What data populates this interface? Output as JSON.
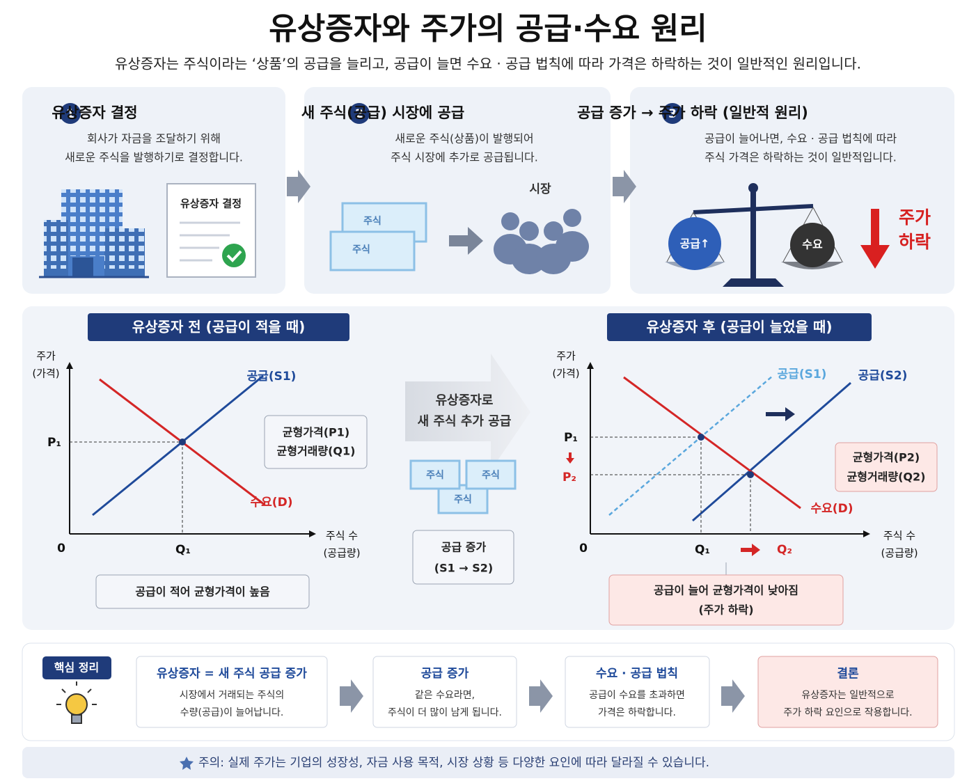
{
  "header": {
    "title": "유상증자와 주가의 공급·수요 원리",
    "subtitle": "유상증자는 주식이라는 ‘상품’의 공급을 늘리고, 공급이 늘면 수요 · 공급 법칙에 따라 가격은 하락하는 것이 일반적인 원리입니다."
  },
  "steps": [
    {
      "number": 1,
      "title": "유상증자 결정",
      "description": [
        "회사가 자금을 조달하기 위해",
        "새로운 주식을 발행하기로 결정합니다."
      ],
      "document_label": "유상증자 결정"
    },
    {
      "number": 2,
      "title": "새 주식(공급) 시장에 공급",
      "description": [
        "새로운 주식(상품)이 발행되어",
        "주식 시장에 추가로 공급됩니다."
      ],
      "certificate_labels": [
        "주식",
        "주식"
      ],
      "market_label": "시장"
    },
    {
      "number": 3,
      "title": "공급 증가 → 주가 하락 (일반적 원리)",
      "description": [
        "공급이 늘어나면, 수요 · 공급 법칙에 따라",
        "주식 가격은 하락하는 것이 일반적입니다."
      ],
      "scale_labels": [
        "공급↑",
        "수요"
      ],
      "result_label": [
        "주가",
        "하락"
      ]
    }
  ],
  "charts": {
    "before": {
      "header": "유상증자 전 (공급이 적을 때)",
      "y_label": [
        "주가",
        "(가격)"
      ],
      "x_label": [
        "주식 수",
        "(공급량)"
      ],
      "origin": 0,
      "price_labels": [
        "P₁"
      ],
      "quantity_labels": [
        "Q₁"
      ],
      "supply_labels": [
        "공급(S1)"
      ],
      "demand_label": "수요(D)",
      "equilibrium_box": [
        "균형가격(P1)",
        "균형거래량(Q1)"
      ],
      "note": [
        "공급이 적어 균형가격이 높음"
      ]
    },
    "transition": {
      "arrow_text": [
        "유상증자로",
        "새 주식 추가 공급"
      ],
      "certificates": [
        "주식",
        "주식",
        "주식"
      ],
      "box": [
        "공급 증가",
        "(S1 → S2)"
      ]
    },
    "after": {
      "header": "유상증자 후 (공급이 늘었을 때)",
      "y_label": [
        "주가",
        "(가격)"
      ],
      "x_label": [
        "주식 수",
        "(공급량)"
      ],
      "origin": 0,
      "price_labels": [
        "P₁",
        "P₂"
      ],
      "quantity_labels": [
        "Q₁",
        "Q₂"
      ],
      "supply_labels": [
        "공급(S1)",
        "공급(S2)"
      ],
      "demand_label": "수요(D)",
      "equilibrium_box": [
        "균형가격(P2)",
        "균형거래량(Q2)"
      ],
      "note": [
        "공급이 늘어 균형가격이 낮아짐",
        "(주가 하락)"
      ]
    }
  },
  "summary": {
    "badge": "핵심 정리",
    "items": [
      {
        "title": "유상증자 = 새 주식 공급 증가",
        "lines": [
          "시장에서 거래되는 주식의",
          "수량(공급)이 늘어납니다."
        ]
      },
      {
        "title": "공급 증가",
        "lines": [
          "같은 수요라면,",
          "주식이 더 많이 남게 됩니다."
        ]
      },
      {
        "title": "수요 · 공급 법칙",
        "lines": [
          "공급이 수요를 초과하면",
          "가격은 하락합니다."
        ]
      },
      {
        "title": "결론",
        "lines": [
          "유상증자는 일반적으로",
          "주가 하락 요인으로 작용합니다."
        ]
      }
    ]
  },
  "footer": {
    "note": "주의: 실제 주가는 기업의 성장성, 자금 사용 목적, 시장 상황 등 다양한 요인에 따라 달라질 수 있습니다."
  }
}
